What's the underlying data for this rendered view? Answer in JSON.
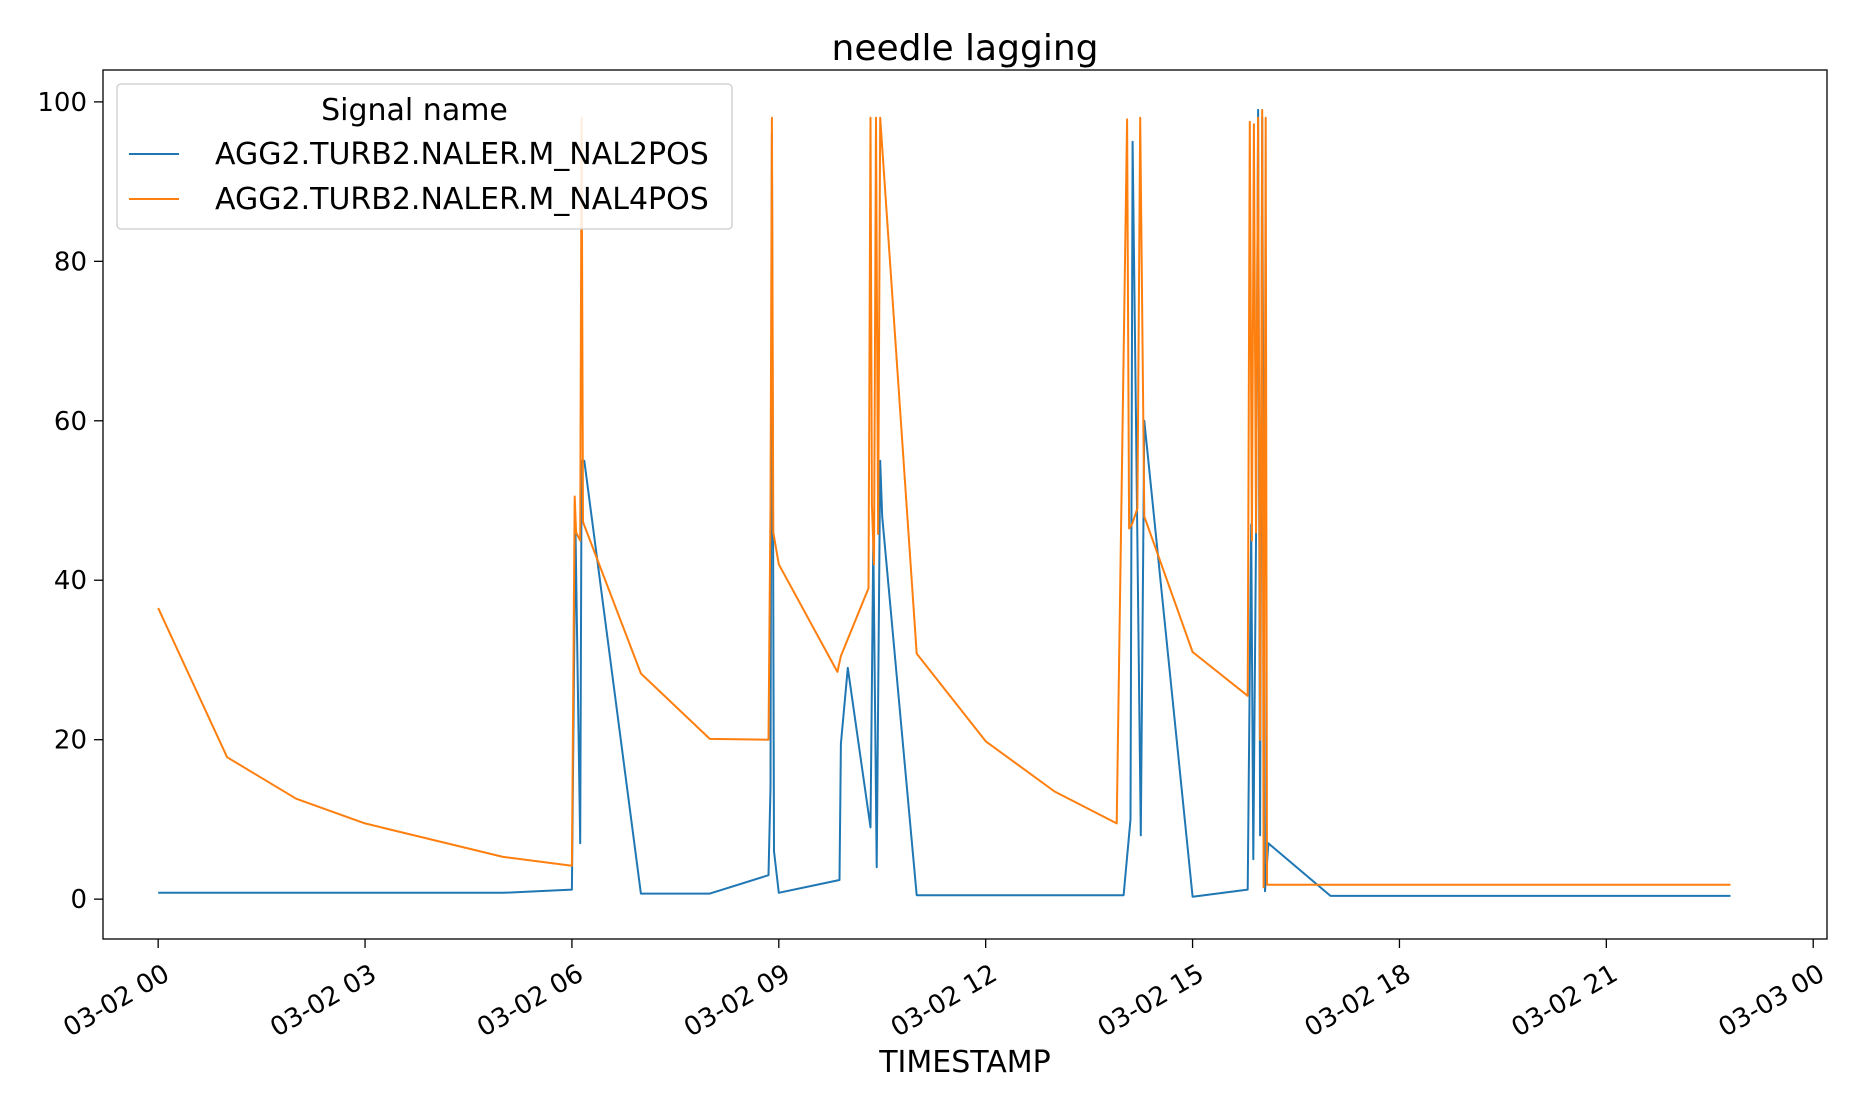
{
  "chart_data": {
    "type": "line",
    "title": "needle lagging",
    "xlabel": "TIMESTAMP",
    "ylabel": "",
    "x_unit": "hours since 03-02 00",
    "xlim": [
      -0.8,
      24.2
    ],
    "ylim": [
      -5,
      104
    ],
    "x_ticks": [
      {
        "value": 0,
        "label": "03-02 00"
      },
      {
        "value": 3,
        "label": "03-02 03"
      },
      {
        "value": 6,
        "label": "03-02 06"
      },
      {
        "value": 9,
        "label": "03-02 09"
      },
      {
        "value": 12,
        "label": "03-02 12"
      },
      {
        "value": 15,
        "label": "03-02 15"
      },
      {
        "value": 18,
        "label": "03-02 18"
      },
      {
        "value": 21,
        "label": "03-02 21"
      },
      {
        "value": 24,
        "label": "03-03 00"
      }
    ],
    "y_ticks": [
      {
        "value": 0,
        "label": "0"
      },
      {
        "value": 20,
        "label": "20"
      },
      {
        "value": 40,
        "label": "40"
      },
      {
        "value": 60,
        "label": "60"
      },
      {
        "value": 80,
        "label": "80"
      },
      {
        "value": 100,
        "label": "100"
      }
    ],
    "grid": false,
    "legend": {
      "title": "Signal name",
      "position": "top-left"
    },
    "series": [
      {
        "name": "AGG2.TURB2.NALER.M_NAL2POS",
        "color": "#1f77b4",
        "x": [
          0,
          5,
          6,
          6.05,
          6.12,
          6.14,
          6.18,
          7,
          8,
          8.85,
          8.88,
          8.9,
          8.93,
          9,
          9.88,
          9.9,
          10,
          10.33,
          10.37,
          10.42,
          10.47,
          10.5,
          11,
          14,
          14.1,
          14.13,
          14.18,
          14.25,
          14.3,
          15,
          15.8,
          15.85,
          15.88,
          15.92,
          15.95,
          15.98,
          16.01,
          16.05,
          16.1,
          17,
          22.8
        ],
        "y": [
          0.8,
          0.8,
          1.2,
          47,
          7,
          55,
          55,
          0.7,
          0.7,
          3,
          14,
          96,
          6,
          0.8,
          2.4,
          19.5,
          29,
          9,
          45,
          4,
          55,
          48,
          0.5,
          0.5,
          10,
          95,
          60,
          8,
          60,
          0.3,
          1.2,
          47,
          5,
          45,
          99,
          8,
          98,
          1,
          7,
          0.4,
          0.4
        ]
      },
      {
        "name": "AGG2.TURB2.NALER.M_NAL4POS",
        "color": "#ff7f0e",
        "x": [
          0,
          1,
          2,
          3,
          5,
          6,
          6.04,
          6.06,
          6.12,
          6.14,
          6.16,
          7,
          8,
          8.85,
          8.88,
          8.9,
          8.92,
          9,
          9.85,
          9.9,
          10.3,
          10.33,
          10.35,
          10.38,
          10.41,
          10.44,
          10.47,
          11,
          12,
          13,
          13.9,
          14.05,
          14.08,
          14.12,
          14.2,
          14.24,
          14.3,
          15,
          15.8,
          15.83,
          15.86,
          15.89,
          15.92,
          15.95,
          15.98,
          16.01,
          16.03,
          16.06,
          16.08,
          22.8
        ],
        "y": [
          36.5,
          17.8,
          12.6,
          9.5,
          5.3,
          4.2,
          50.5,
          46,
          45,
          98,
          47.3,
          28.3,
          20.1,
          20,
          49.5,
          98,
          46,
          42,
          28.5,
          30.5,
          39,
          98,
          49.5,
          42,
          98,
          45.8,
          98,
          30.8,
          19.8,
          13.5,
          9.5,
          97.8,
          46.5,
          47,
          49,
          98,
          48,
          31,
          25.5,
          97.5,
          45,
          97.2,
          46,
          98,
          20,
          99,
          1.5,
          98,
          1.8,
          1.8
        ]
      }
    ]
  }
}
